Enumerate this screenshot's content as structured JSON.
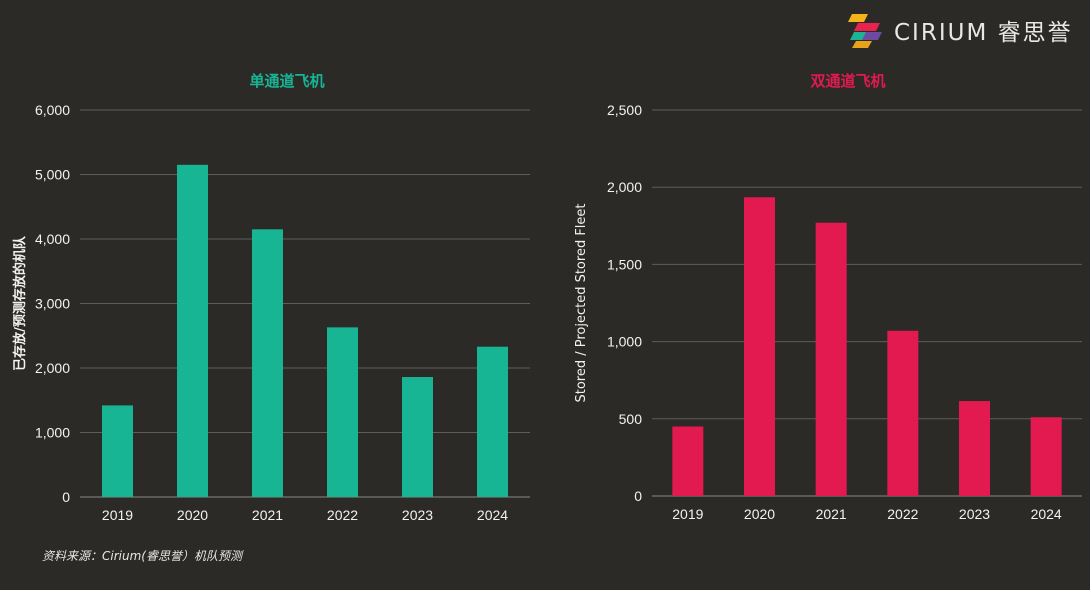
{
  "logo": {
    "text": "CIRIUM 睿思誉",
    "colors": [
      "#f4b51c",
      "#e8234f",
      "#1bb394",
      "#6d4ba1"
    ]
  },
  "footer": {
    "source": "资料来源：Cirium(睿思誉）机队预测"
  },
  "colors": {
    "left_bar": "#18b595",
    "right_bar": "#e21a4f",
    "grid": "#5e5d59",
    "axis_text": "#f2f2f2"
  },
  "chart_data": [
    {
      "type": "bar",
      "title": "单通道飞机",
      "title_color": "#18b595",
      "ylabel": "已存放/预测存放的机队",
      "xlabel": "",
      "categories": [
        "2019",
        "2020",
        "2021",
        "2022",
        "2023",
        "2024"
      ],
      "values": [
        1420,
        5150,
        4150,
        2630,
        1860,
        2330
      ],
      "ylim": [
        0,
        6000
      ],
      "yticks": [
        0,
        1000,
        2000,
        3000,
        4000,
        5000,
        6000
      ],
      "ytick_labels": [
        "0",
        "1,000",
        "2,000",
        "3,000",
        "4,000",
        "5,000",
        "6,000"
      ]
    },
    {
      "type": "bar",
      "title": "双通道飞机",
      "title_color": "#e21a4f",
      "ylabel": "Stored / Projected Stored Fleet",
      "xlabel": "",
      "categories": [
        "2019",
        "2020",
        "2021",
        "2022",
        "2023",
        "2024"
      ],
      "values": [
        450,
        1935,
        1770,
        1070,
        615,
        510
      ],
      "ylim": [
        0,
        2500
      ],
      "yticks": [
        0,
        500,
        1000,
        1500,
        2000,
        2500
      ],
      "ytick_labels": [
        "0",
        "500",
        "1,000",
        "1,500",
        "2,000",
        "2,500"
      ]
    }
  ]
}
